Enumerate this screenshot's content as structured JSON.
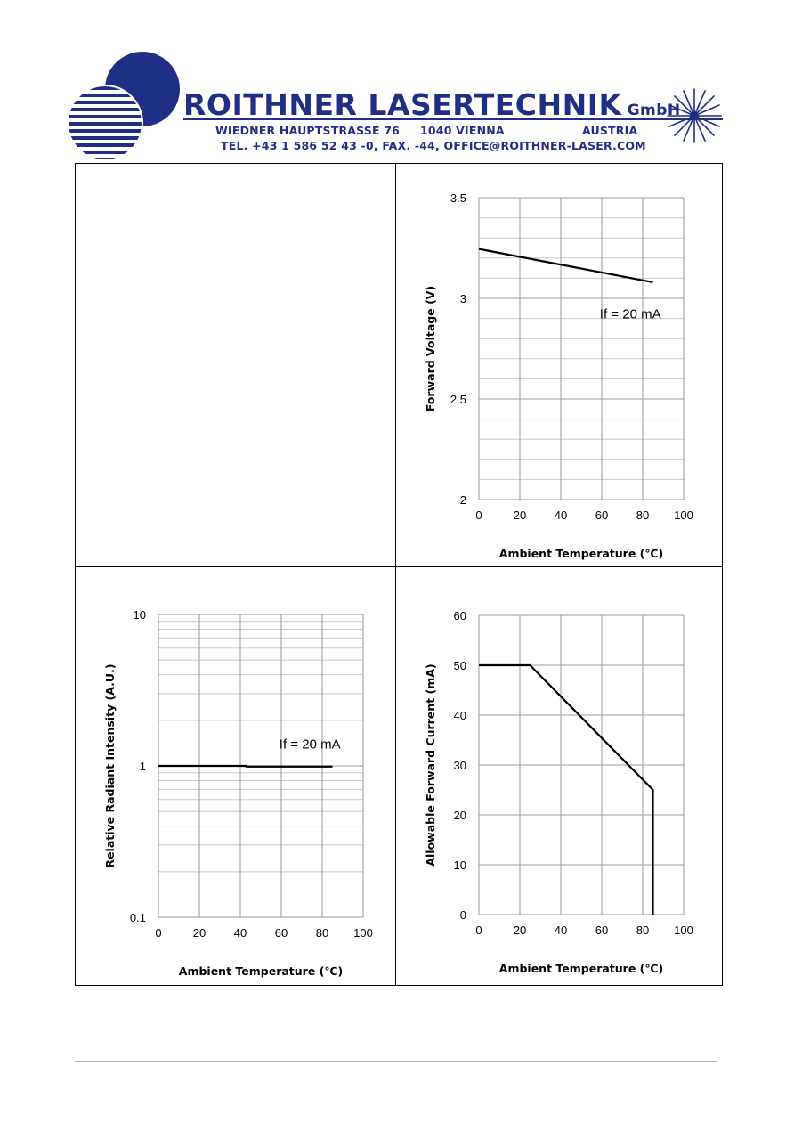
{
  "header": {
    "company_main": "ROITHNER LASERTECHNIK",
    "company_suffix": "GmbH",
    "street": "WIEDNER HAUPTSTRASSE 76",
    "city": "1040 VIENNA",
    "country": "AUSTRIA",
    "contact": "TEL. +43 1 586 52 43 -0, FAX. -44, OFFICE@ROITHNER-LASER.COM",
    "brand_color": "#1f2f86"
  },
  "chart_data": [
    {
      "id": "forward-voltage",
      "type": "line",
      "title": "",
      "xlabel": "Ambient Temperature (℃)",
      "ylabel": "Forward Voltage (V)",
      "xlim": [
        0,
        100
      ],
      "ylim": [
        2,
        3.5
      ],
      "xticks": [
        "0",
        "20",
        "40",
        "60",
        "80",
        "100"
      ],
      "yticks": [
        "2",
        "2.5",
        "3",
        "3.5"
      ],
      "grid": true,
      "y_scale": "linear",
      "annotation": "If = 20 mA",
      "series": [
        {
          "x": [
            0,
            85
          ],
          "y": [
            3.245,
            3.08
          ]
        }
      ]
    },
    {
      "id": "relative-radiant-intensity",
      "type": "line",
      "title": "",
      "xlabel": "Ambient Temperature (℃)",
      "ylabel": "Relative Radiant Intensity (A.U.)",
      "xlim": [
        0,
        100
      ],
      "ylim": [
        0.1,
        10
      ],
      "xticks": [
        "0",
        "20",
        "40",
        "60",
        "80",
        "100"
      ],
      "yticks": [
        "0.1",
        "1",
        "10"
      ],
      "grid": true,
      "y_scale": "log",
      "annotation": "If = 20 mA",
      "series": [
        {
          "x": [
            0,
            43,
            43,
            85
          ],
          "y": [
            1.0,
            1.0,
            0.99,
            0.99
          ]
        }
      ]
    },
    {
      "id": "allowable-forward-current",
      "type": "line",
      "title": "",
      "xlabel": "Ambient Temperature (℃)",
      "ylabel": "Allowable Forward Current (mA)",
      "xlim": [
        0,
        100
      ],
      "ylim": [
        0,
        60
      ],
      "xticks": [
        "0",
        "20",
        "40",
        "60",
        "80",
        "100"
      ],
      "yticks": [
        "0",
        "10",
        "20",
        "30",
        "40",
        "50",
        "60"
      ],
      "grid": true,
      "y_scale": "linear",
      "annotation": "",
      "series": [
        {
          "x": [
            0,
            25,
            85,
            85
          ],
          "y": [
            50,
            50,
            25,
            0
          ]
        }
      ]
    }
  ]
}
